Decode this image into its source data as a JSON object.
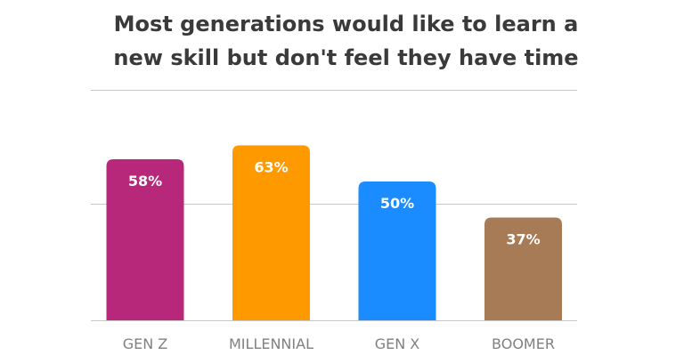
{
  "title_lines": [
    "Most generations would like to learn a",
    "new skill but don't feel they have time"
  ],
  "chart_data": {
    "type": "bar",
    "title": "Most generations would like to learn a new skill but don't feel they have time",
    "categories": [
      "GEN Z",
      "MILLENNIAL",
      "GEN X",
      "BOOMER"
    ],
    "values": [
      58,
      63,
      50,
      37
    ],
    "value_labels": [
      "58%",
      "63%",
      "50%",
      "37%"
    ],
    "colors": [
      "#b8287a",
      "#ff9900",
      "#1a8cff",
      "#a67b55"
    ],
    "ylim": [
      0,
      83
    ],
    "gridlines": [
      0,
      42,
      83
    ],
    "grid": true,
    "xlabel": "",
    "ylabel": ""
  }
}
